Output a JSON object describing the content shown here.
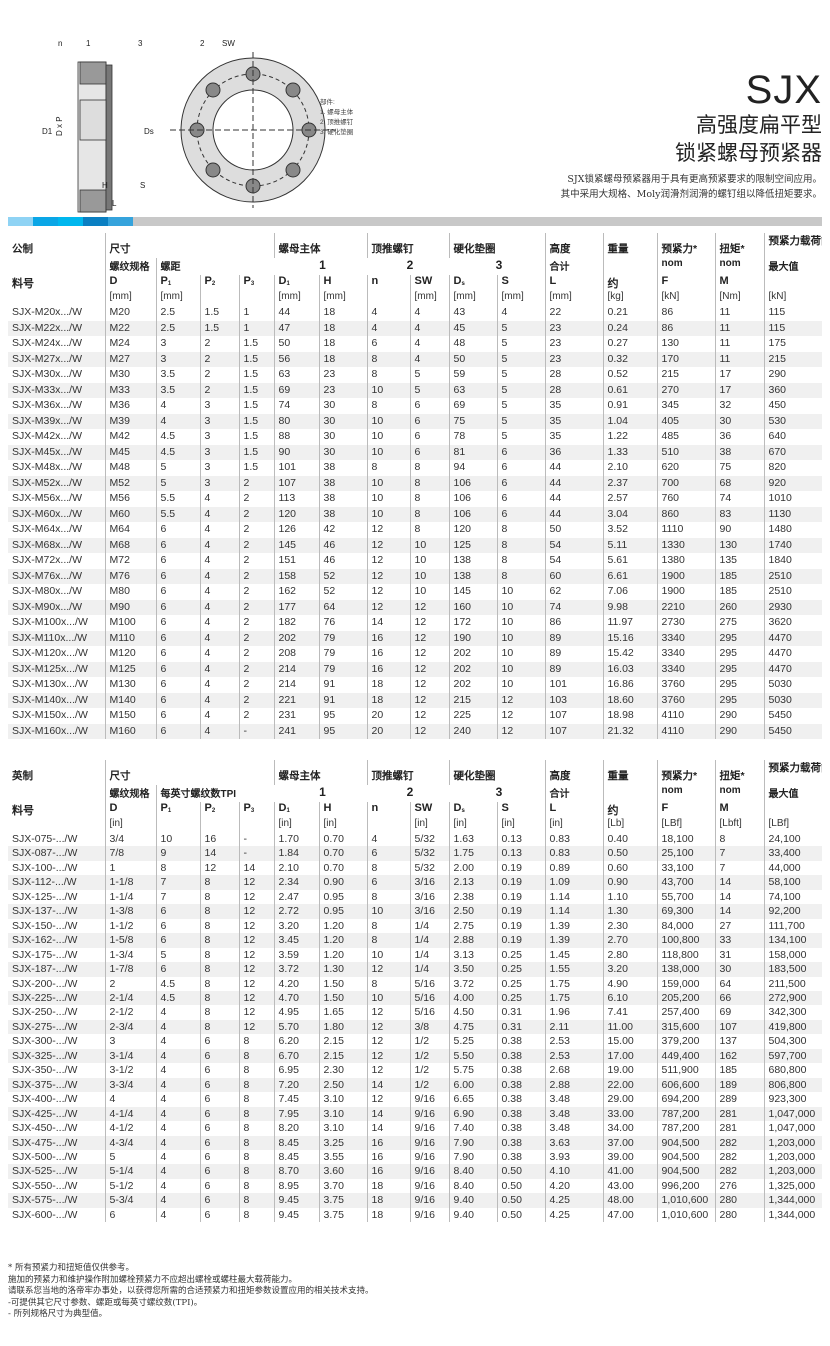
{
  "header": {
    "code": "SJX",
    "title_line1": "高强度扁平型",
    "title_line2": "锁紧螺母预紧器",
    "desc_line1": "SJX锁紧螺母预紧器用于具有更高预紧要求的限制空间应用。",
    "desc_line2": "其中采用大规格、Moly润滑剂润滑的螺钉组以降低扭矩要求。"
  },
  "diagram": {
    "labels": {
      "n": "n",
      "one": "1",
      "three": "3",
      "two": "2",
      "sw": "SW",
      "d1": "D1",
      "dxp": "D x P",
      "ds": "Ds",
      "h": "H",
      "s": "S",
      "l": "L"
    },
    "parts_title": "部件:",
    "parts": [
      "1. 螺母主体",
      "2. 顶推螺钉",
      "3. 硬化垫圈"
    ]
  },
  "colors": {
    "bar": [
      "#8fd3f4",
      "#0aa6e6",
      "#00b7ee",
      "#0a7fc2",
      "#35a3dc"
    ],
    "bar_rest": "#c8c8c8",
    "stripe": "#f0f0f0"
  },
  "metric": {
    "h1": [
      "公制",
      "尺寸",
      "螺母主体",
      "顶推螺钉",
      "硬化垫圈",
      "高度",
      "重量",
      "预紧力*",
      "扭矩*",
      "预紧力载荷能力*"
    ],
    "h2": [
      "螺纹规格",
      "螺距",
      "1",
      "2",
      "3",
      "合计",
      "nom",
      "nom",
      "最大值"
    ],
    "h3": [
      "料号",
      "D",
      "P",
      "P",
      "P",
      "D",
      "H",
      "n",
      "SW",
      "D",
      "S",
      "L",
      "约",
      "F",
      "M"
    ],
    "h3_sub": [
      "1",
      "2",
      "3",
      "1",
      "s"
    ],
    "units": [
      "[mm]",
      "[mm]",
      "",
      "",
      "[mm]",
      "[mm]",
      "",
      "[mm]",
      "[mm]",
      "[mm]",
      "[mm]",
      "[kg]",
      "[kN]",
      "[Nm]",
      "[kN]"
    ],
    "rows": [
      [
        "SJX-M20x.../W",
        "M20",
        "2.5",
        "1.5",
        "1",
        "44",
        "18",
        "4",
        "4",
        "43",
        "4",
        "22",
        "0.21",
        "86",
        "11",
        "115"
      ],
      [
        "SJX-M22x.../W",
        "M22",
        "2.5",
        "1.5",
        "1",
        "47",
        "18",
        "4",
        "4",
        "45",
        "5",
        "23",
        "0.24",
        "86",
        "11",
        "115"
      ],
      [
        "SJX-M24x.../W",
        "M24",
        "3",
        "2",
        "1.5",
        "50",
        "18",
        "6",
        "4",
        "48",
        "5",
        "23",
        "0.27",
        "130",
        "11",
        "175"
      ],
      [
        "SJX-M27x.../W",
        "M27",
        "3",
        "2",
        "1.5",
        "56",
        "18",
        "8",
        "4",
        "50",
        "5",
        "23",
        "0.32",
        "170",
        "11",
        "215"
      ],
      [
        "SJX-M30x.../W",
        "M30",
        "3.5",
        "2",
        "1.5",
        "63",
        "23",
        "8",
        "5",
        "59",
        "5",
        "28",
        "0.52",
        "215",
        "17",
        "290"
      ],
      [
        "SJX-M33x.../W",
        "M33",
        "3.5",
        "2",
        "1.5",
        "69",
        "23",
        "10",
        "5",
        "63",
        "5",
        "28",
        "0.61",
        "270",
        "17",
        "360"
      ],
      [
        "SJX-M36x.../W",
        "M36",
        "4",
        "3",
        "1.5",
        "74",
        "30",
        "8",
        "6",
        "69",
        "5",
        "35",
        "0.91",
        "345",
        "32",
        "450"
      ],
      [
        "SJX-M39x.../W",
        "M39",
        "4",
        "3",
        "1.5",
        "80",
        "30",
        "10",
        "6",
        "75",
        "5",
        "35",
        "1.04",
        "405",
        "30",
        "530"
      ],
      [
        "SJX-M42x.../W",
        "M42",
        "4.5",
        "3",
        "1.5",
        "88",
        "30",
        "10",
        "6",
        "78",
        "5",
        "35",
        "1.22",
        "485",
        "36",
        "640"
      ],
      [
        "SJX-M45x.../W",
        "M45",
        "4.5",
        "3",
        "1.5",
        "90",
        "30",
        "10",
        "6",
        "81",
        "6",
        "36",
        "1.33",
        "510",
        "38",
        "670"
      ],
      [
        "SJX-M48x.../W",
        "M48",
        "5",
        "3",
        "1.5",
        "101",
        "38",
        "8",
        "8",
        "94",
        "6",
        "44",
        "2.10",
        "620",
        "75",
        "820"
      ],
      [
        "SJX-M52x.../W",
        "M52",
        "5",
        "3",
        "2",
        "107",
        "38",
        "10",
        "8",
        "106",
        "6",
        "44",
        "2.37",
        "700",
        "68",
        "920"
      ],
      [
        "SJX-M56x.../W",
        "M56",
        "5.5",
        "4",
        "2",
        "113",
        "38",
        "10",
        "8",
        "106",
        "6",
        "44",
        "2.57",
        "760",
        "74",
        "1010"
      ],
      [
        "SJX-M60x.../W",
        "M60",
        "5.5",
        "4",
        "2",
        "120",
        "38",
        "10",
        "8",
        "106",
        "6",
        "44",
        "3.04",
        "860",
        "83",
        "1130"
      ],
      [
        "SJX-M64x.../W",
        "M64",
        "6",
        "4",
        "2",
        "126",
        "42",
        "12",
        "8",
        "120",
        "8",
        "50",
        "3.52",
        "1110",
        "90",
        "1480"
      ],
      [
        "SJX-M68x.../W",
        "M68",
        "6",
        "4",
        "2",
        "145",
        "46",
        "12",
        "10",
        "125",
        "8",
        "54",
        "5.11",
        "1330",
        "130",
        "1740"
      ],
      [
        "SJX-M72x.../W",
        "M72",
        "6",
        "4",
        "2",
        "151",
        "46",
        "12",
        "10",
        "138",
        "8",
        "54",
        "5.61",
        "1380",
        "135",
        "1840"
      ],
      [
        "SJX-M76x.../W",
        "M76",
        "6",
        "4",
        "2",
        "158",
        "52",
        "12",
        "10",
        "138",
        "8",
        "60",
        "6.61",
        "1900",
        "185",
        "2510"
      ],
      [
        "SJX-M80x.../W",
        "M80",
        "6",
        "4",
        "2",
        "162",
        "52",
        "12",
        "10",
        "145",
        "10",
        "62",
        "7.06",
        "1900",
        "185",
        "2510"
      ],
      [
        "SJX-M90x.../W",
        "M90",
        "6",
        "4",
        "2",
        "177",
        "64",
        "12",
        "12",
        "160",
        "10",
        "74",
        "9.98",
        "2210",
        "260",
        "2930"
      ],
      [
        "SJX-M100x.../W",
        "M100",
        "6",
        "4",
        "2",
        "182",
        "76",
        "14",
        "12",
        "172",
        "10",
        "86",
        "11.97",
        "2730",
        "275",
        "3620"
      ],
      [
        "SJX-M110x.../W",
        "M110",
        "6",
        "4",
        "2",
        "202",
        "79",
        "16",
        "12",
        "190",
        "10",
        "89",
        "15.16",
        "3340",
        "295",
        "4470"
      ],
      [
        "SJX-M120x.../W",
        "M120",
        "6",
        "4",
        "2",
        "208",
        "79",
        "16",
        "12",
        "202",
        "10",
        "89",
        "15.42",
        "3340",
        "295",
        "4470"
      ],
      [
        "SJX-M125x.../W",
        "M125",
        "6",
        "4",
        "2",
        "214",
        "79",
        "16",
        "12",
        "202",
        "10",
        "89",
        "16.03",
        "3340",
        "295",
        "4470"
      ],
      [
        "SJX-M130x.../W",
        "M130",
        "6",
        "4",
        "2",
        "214",
        "91",
        "18",
        "12",
        "202",
        "10",
        "101",
        "16.86",
        "3760",
        "295",
        "5030"
      ],
      [
        "SJX-M140x.../W",
        "M140",
        "6",
        "4",
        "2",
        "221",
        "91",
        "18",
        "12",
        "215",
        "12",
        "103",
        "18.60",
        "3760",
        "295",
        "5030"
      ],
      [
        "SJX-M150x.../W",
        "M150",
        "6",
        "4",
        "2",
        "231",
        "95",
        "20",
        "12",
        "225",
        "12",
        "107",
        "18.98",
        "4110",
        "290",
        "5450"
      ],
      [
        "SJX-M160x.../W",
        "M160",
        "6",
        "4",
        "-",
        "241",
        "95",
        "20",
        "12",
        "240",
        "12",
        "107",
        "21.32",
        "4110",
        "290",
        "5450"
      ]
    ]
  },
  "imperial": {
    "h1": [
      "英制",
      "尺寸",
      "螺母主体",
      "顶推螺钉",
      "硬化垫圈",
      "高度",
      "重量",
      "预紧力*",
      "扭矩*",
      "预紧力载荷能力*"
    ],
    "h2": [
      "螺纹规格",
      "每英寸螺纹数TPI",
      "1",
      "2",
      "3",
      "合计",
      "nom",
      "nom",
      "最大值"
    ],
    "h3": [
      "料号",
      "D",
      "P",
      "P",
      "P",
      "D",
      "H",
      "n",
      "SW",
      "D",
      "S",
      "L",
      "约",
      "F",
      "M"
    ],
    "h3_sub": [
      "1",
      "2",
      "3",
      "1",
      "s"
    ],
    "units": [
      "[in]",
      "",
      "",
      "",
      "[in]",
      "[in]",
      "",
      "[in]",
      "[in]",
      "[in]",
      "[in]",
      "[Lb]",
      "[LBf]",
      "[Lbft]",
      "[LBf]"
    ],
    "rows": [
      [
        "SJX-075-.../W",
        "3/4",
        "10",
        "16",
        "-",
        "1.70",
        "0.70",
        "4",
        "5/32",
        "1.63",
        "0.13",
        "0.83",
        "0.40",
        "18,100",
        "8",
        "24,100"
      ],
      [
        "SJX-087-.../W",
        "7/8",
        "9",
        "14",
        "-",
        "1.84",
        "0.70",
        "6",
        "5/32",
        "1.75",
        "0.13",
        "0.83",
        "0.50",
        "25,100",
        "7",
        "33,400"
      ],
      [
        "SJX-100-.../W",
        "1",
        "8",
        "12",
        "14",
        "2.10",
        "0.70",
        "8",
        "5/32",
        "2.00",
        "0.19",
        "0.89",
        "0.60",
        "33,100",
        "7",
        "44,000"
      ],
      [
        "SJX-112-.../W",
        "1-1/8",
        "7",
        "8",
        "12",
        "2.34",
        "0.90",
        "6",
        "3/16",
        "2.13",
        "0.19",
        "1.09",
        "0.90",
        "43,700",
        "14",
        "58,100"
      ],
      [
        "SJX-125-.../W",
        "1-1/4",
        "7",
        "8",
        "12",
        "2.47",
        "0.95",
        "8",
        "3/16",
        "2.38",
        "0.19",
        "1.14",
        "1.10",
        "55,700",
        "14",
        "74,100"
      ],
      [
        "SJX-137-.../W",
        "1-3/8",
        "6",
        "8",
        "12",
        "2.72",
        "0.95",
        "10",
        "3/16",
        "2.50",
        "0.19",
        "1.14",
        "1.30",
        "69,300",
        "14",
        "92,200"
      ],
      [
        "SJX-150-.../W",
        "1-1/2",
        "6",
        "8",
        "12",
        "3.20",
        "1.20",
        "8",
        "1/4",
        "2.75",
        "0.19",
        "1.39",
        "2.30",
        "84,000",
        "27",
        "111,700"
      ],
      [
        "SJX-162-.../W",
        "1-5/8",
        "6",
        "8",
        "12",
        "3.45",
        "1.20",
        "8",
        "1/4",
        "2.88",
        "0.19",
        "1.39",
        "2.70",
        "100,800",
        "33",
        "134,100"
      ],
      [
        "SJX-175-.../W",
        "1-3/4",
        "5",
        "8",
        "12",
        "3.59",
        "1.20",
        "10",
        "1/4",
        "3.13",
        "0.25",
        "1.45",
        "2.80",
        "118,800",
        "31",
        "158,000"
      ],
      [
        "SJX-187-.../W",
        "1-7/8",
        "6",
        "8",
        "12",
        "3.72",
        "1.30",
        "12",
        "1/4",
        "3.50",
        "0.25",
        "1.55",
        "3.20",
        "138,000",
        "30",
        "183,500"
      ],
      [
        "SJX-200-.../W",
        "2",
        "4.5",
        "8",
        "12",
        "4.20",
        "1.50",
        "8",
        "5/16",
        "3.72",
        "0.25",
        "1.75",
        "4.90",
        "159,000",
        "64",
        "211,500"
      ],
      [
        "SJX-225-.../W",
        "2-1/4",
        "4.5",
        "8",
        "12",
        "4.70",
        "1.50",
        "10",
        "5/16",
        "4.00",
        "0.25",
        "1.75",
        "6.10",
        "205,200",
        "66",
        "272,900"
      ],
      [
        "SJX-250-.../W",
        "2-1/2",
        "4",
        "8",
        "12",
        "4.95",
        "1.65",
        "12",
        "5/16",
        "4.50",
        "0.31",
        "1.96",
        "7.41",
        "257,400",
        "69",
        "342,300"
      ],
      [
        "SJX-275-.../W",
        "2-3/4",
        "4",
        "8",
        "12",
        "5.70",
        "1.80",
        "12",
        "3/8",
        "4.75",
        "0.31",
        "2.11",
        "11.00",
        "315,600",
        "107",
        "419,800"
      ],
      [
        "SJX-300-.../W",
        "3",
        "4",
        "6",
        "8",
        "6.20",
        "2.15",
        "12",
        "1/2",
        "5.25",
        "0.38",
        "2.53",
        "15.00",
        "379,200",
        "137",
        "504,300"
      ],
      [
        "SJX-325-.../W",
        "3-1/4",
        "4",
        "6",
        "8",
        "6.70",
        "2.15",
        "12",
        "1/2",
        "5.50",
        "0.38",
        "2.53",
        "17.00",
        "449,400",
        "162",
        "597,700"
      ],
      [
        "SJX-350-.../W",
        "3-1/2",
        "4",
        "6",
        "8",
        "6.95",
        "2.30",
        "12",
        "1/2",
        "5.75",
        "0.38",
        "2.68",
        "19.00",
        "511,900",
        "185",
        "680,800"
      ],
      [
        "SJX-375-.../W",
        "3-3/4",
        "4",
        "6",
        "8",
        "7.20",
        "2.50",
        "14",
        "1/2",
        "6.00",
        "0.38",
        "2.88",
        "22.00",
        "606,600",
        "189",
        "806,800"
      ],
      [
        "SJX-400-.../W",
        "4",
        "4",
        "6",
        "8",
        "7.45",
        "3.10",
        "12",
        "9/16",
        "6.65",
        "0.38",
        "3.48",
        "29.00",
        "694,200",
        "289",
        "923,300"
      ],
      [
        "SJX-425-.../W",
        "4-1/4",
        "4",
        "6",
        "8",
        "7.95",
        "3.10",
        "14",
        "9/16",
        "6.90",
        "0.38",
        "3.48",
        "33.00",
        "787,200",
        "281",
        "1,047,000"
      ],
      [
        "SJX-450-.../W",
        "4-1/2",
        "4",
        "6",
        "8",
        "8.20",
        "3.10",
        "14",
        "9/16",
        "7.40",
        "0.38",
        "3.48",
        "34.00",
        "787,200",
        "281",
        "1,047,000"
      ],
      [
        "SJX-475-.../W",
        "4-3/4",
        "4",
        "6",
        "8",
        "8.45",
        "3.25",
        "16",
        "9/16",
        "7.90",
        "0.38",
        "3.63",
        "37.00",
        "904,500",
        "282",
        "1,203,000"
      ],
      [
        "SJX-500-.../W",
        "5",
        "4",
        "6",
        "8",
        "8.45",
        "3.55",
        "16",
        "9/16",
        "7.90",
        "0.38",
        "3.93",
        "39.00",
        "904,500",
        "282",
        "1,203,000"
      ],
      [
        "SJX-525-.../W",
        "5-1/4",
        "4",
        "6",
        "8",
        "8.70",
        "3.60",
        "16",
        "9/16",
        "8.40",
        "0.50",
        "4.10",
        "41.00",
        "904,500",
        "282",
        "1,203,000"
      ],
      [
        "SJX-550-.../W",
        "5-1/2",
        "4",
        "6",
        "8",
        "8.95",
        "3.70",
        "18",
        "9/16",
        "8.40",
        "0.50",
        "4.20",
        "43.00",
        "996,200",
        "276",
        "1,325,000"
      ],
      [
        "SJX-575-.../W",
        "5-3/4",
        "4",
        "6",
        "8",
        "9.45",
        "3.75",
        "18",
        "9/16",
        "9.40",
        "0.50",
        "4.25",
        "48.00",
        "1,010,600",
        "280",
        "1,344,000"
      ],
      [
        "SJX-600-.../W",
        "6",
        "4",
        "6",
        "8",
        "9.45",
        "3.75",
        "18",
        "9/16",
        "9.40",
        "0.50",
        "4.25",
        "47.00",
        "1,010,600",
        "280",
        "1,344,000"
      ]
    ]
  },
  "notes": [
    "* 所有预紧力和扭矩值仅供参考。",
    " 施加的预紧力和维护操作附加螺栓预紧力不应超出螺栓或螺柱最大载荷能力。",
    " 请联系您当地的洛帝牢办事处，以获得您所需的合适预紧力和扭矩参数设置应用的相关技术支持。",
    "-可提供其它尺寸参数、螺距或每英寸螺纹数(TPI)。",
    "- 所列规格尺寸为典型值。"
  ]
}
